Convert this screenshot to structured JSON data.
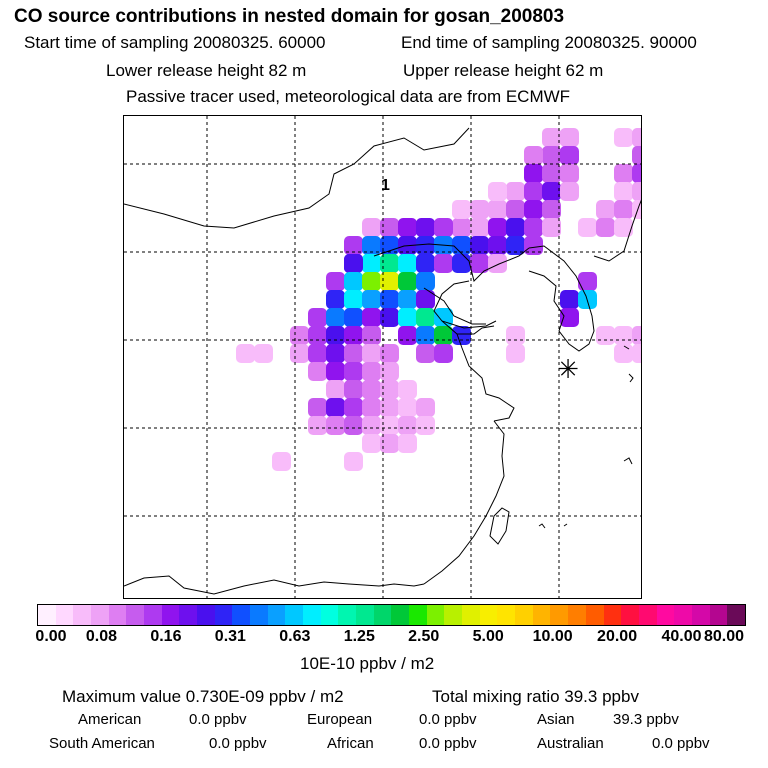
{
  "header": {
    "title": "CO  source contributions in nested domain for gosan_200803",
    "start_time": "Start time of sampling 20080325. 60000",
    "end_time": "End time of sampling 20080325. 90000",
    "lower_height": "Lower release height   82 m",
    "upper_height": "Upper release height   62 m",
    "note": "Passive tracer used, meteorological data are from ECMWF"
  },
  "map": {
    "label": "1",
    "receptor_symbol": "✳",
    "grid_color": "#000000"
  },
  "colorbar": {
    "colors": [
      "#fff0ff",
      "#ffd8ff",
      "#f8bcfa",
      "#eea2f6",
      "#de7ef2",
      "#c65cee",
      "#ae3af0",
      "#9014ee",
      "#6e10ee",
      "#4a10ee",
      "#2f24f6",
      "#1050ff",
      "#0a7aff",
      "#0aa0ff",
      "#00c8ff",
      "#00eeff",
      "#00ffe0",
      "#00f6b0",
      "#00e890",
      "#00d66a",
      "#00c838",
      "#1ae800",
      "#7cf000",
      "#b8f000",
      "#e0f000",
      "#f8ee00",
      "#ffe400",
      "#ffd000",
      "#ffb400",
      "#ff9a00",
      "#ff7e00",
      "#ff5c00",
      "#ff3010",
      "#ff1040",
      "#ff0a70",
      "#ff0aa0",
      "#ee0aa8",
      "#d408a8",
      "#b40690",
      "#6a0a58"
    ],
    "tick_labels": [
      "0.00",
      "0.08",
      "0.16",
      "0.31",
      "0.63",
      "1.25",
      "2.50",
      "5.00",
      "10.00",
      "20.00",
      "40.00",
      "80.00"
    ],
    "unit": "10E-10 ppbv / m2"
  },
  "summary": {
    "max_value": "Maximum value  0.730E-09 ppbv / m2",
    "total_mixing": "Total mixing ratio       39.3 ppbv",
    "regions": [
      {
        "name": "American",
        "value": "0.0 ppbv"
      },
      {
        "name": "European",
        "value": "0.0 ppbv"
      },
      {
        "name": "Asian",
        "value": "39.3 ppbv"
      },
      {
        "name": "South American",
        "value": "0.0 ppbv"
      },
      {
        "name": "African",
        "value": "0.0 ppbv"
      },
      {
        "name": "Australian",
        "value": "0.0 ppbv"
      }
    ]
  }
}
